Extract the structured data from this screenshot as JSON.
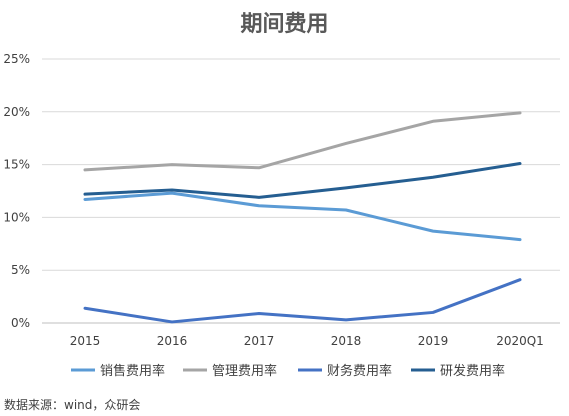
{
  "chart_data": {
    "type": "line",
    "title": "期间费用",
    "categories": [
      "2015",
      "2016",
      "2017",
      "2018",
      "2019",
      "2020Q1"
    ],
    "yticks": [
      "0%",
      "5%",
      "10%",
      "15%",
      "20%",
      "25%"
    ],
    "ylim": [
      0,
      25
    ],
    "grid": true,
    "legend_position": "bottom",
    "series": [
      {
        "name": "销售费用率",
        "color": "#5B9BD5",
        "values": [
          11.7,
          12.3,
          11.1,
          10.7,
          8.7,
          7.9
        ]
      },
      {
        "name": "管理费用率",
        "color": "#A5A5A5",
        "values": [
          14.5,
          15.0,
          14.7,
          17.0,
          19.1,
          19.9
        ]
      },
      {
        "name": "财务费用率",
        "color": "#4472C4",
        "values": [
          1.4,
          0.1,
          0.9,
          0.3,
          1.0,
          4.1
        ]
      },
      {
        "name": "研发费用率",
        "color": "#255E91",
        "values": [
          12.2,
          12.6,
          11.9,
          12.8,
          13.8,
          15.1
        ]
      }
    ]
  },
  "source_text": "数据来源：wind，众研会"
}
